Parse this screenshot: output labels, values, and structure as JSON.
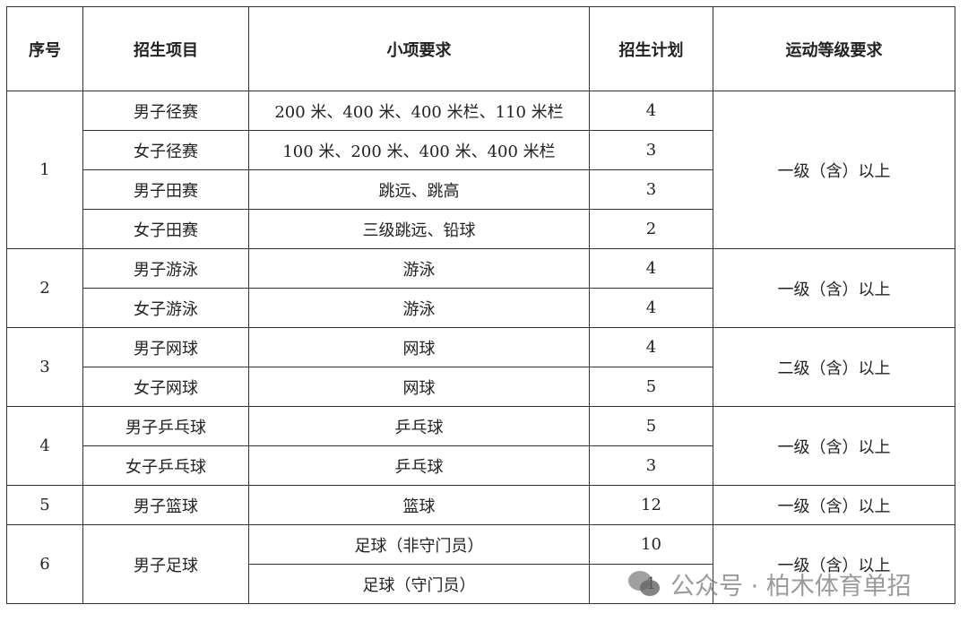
{
  "headers": [
    "序号",
    "招生项目",
    "小项要求",
    "招生计划",
    "运动等级要求"
  ],
  "groups": [
    {
      "seq": "1",
      "level": "一级（含）以上",
      "rows": [
        {
          "project": "男子径赛",
          "items": "200 米、400 米、400 米栏、110 米栏",
          "quota": "4"
        },
        {
          "project": "女子径赛",
          "items": "100 米、200 米、400 米、400 米栏",
          "quota": "3"
        },
        {
          "project": "男子田赛",
          "items": "跳远、跳高",
          "quota": "3"
        },
        {
          "project": "女子田赛",
          "items": "三级跳远、铅球",
          "quota": "2"
        }
      ]
    },
    {
      "seq": "2",
      "level": "一级（含）以上",
      "rows": [
        {
          "project": "男子游泳",
          "items": "游泳",
          "quota": "4"
        },
        {
          "project": "女子游泳",
          "items": "游泳",
          "quota": "4"
        }
      ]
    },
    {
      "seq": "3",
      "level": "二级（含）以上",
      "rows": [
        {
          "project": "男子网球",
          "items": "网球",
          "quota": "4"
        },
        {
          "project": "女子网球",
          "items": "网球",
          "quota": "5"
        }
      ]
    },
    {
      "seq": "4",
      "level": "一级（含）以上",
      "rows": [
        {
          "project": "男子乒乓球",
          "items": "乒乓球",
          "quota": "5"
        },
        {
          "project": "女子乒乓球",
          "items": "乒乓球",
          "quota": "3"
        }
      ]
    },
    {
      "seq": "5",
      "level": "一级（含）以上",
      "rows": [
        {
          "project": "男子篮球",
          "items": "篮球",
          "quota": "12"
        }
      ]
    },
    {
      "seq": "6",
      "level": "一级（含）以上",
      "project_merged": "男子足球",
      "rows": [
        {
          "project": "男子足球",
          "items": "足球（非守门员）",
          "quota": "10"
        },
        {
          "project": "男子足球",
          "items": "足球（守门员）",
          "quota": "1"
        }
      ]
    }
  ],
  "watermark": {
    "icon": "wechat-icon",
    "text": "公众号 · 柏木体育单招"
  }
}
